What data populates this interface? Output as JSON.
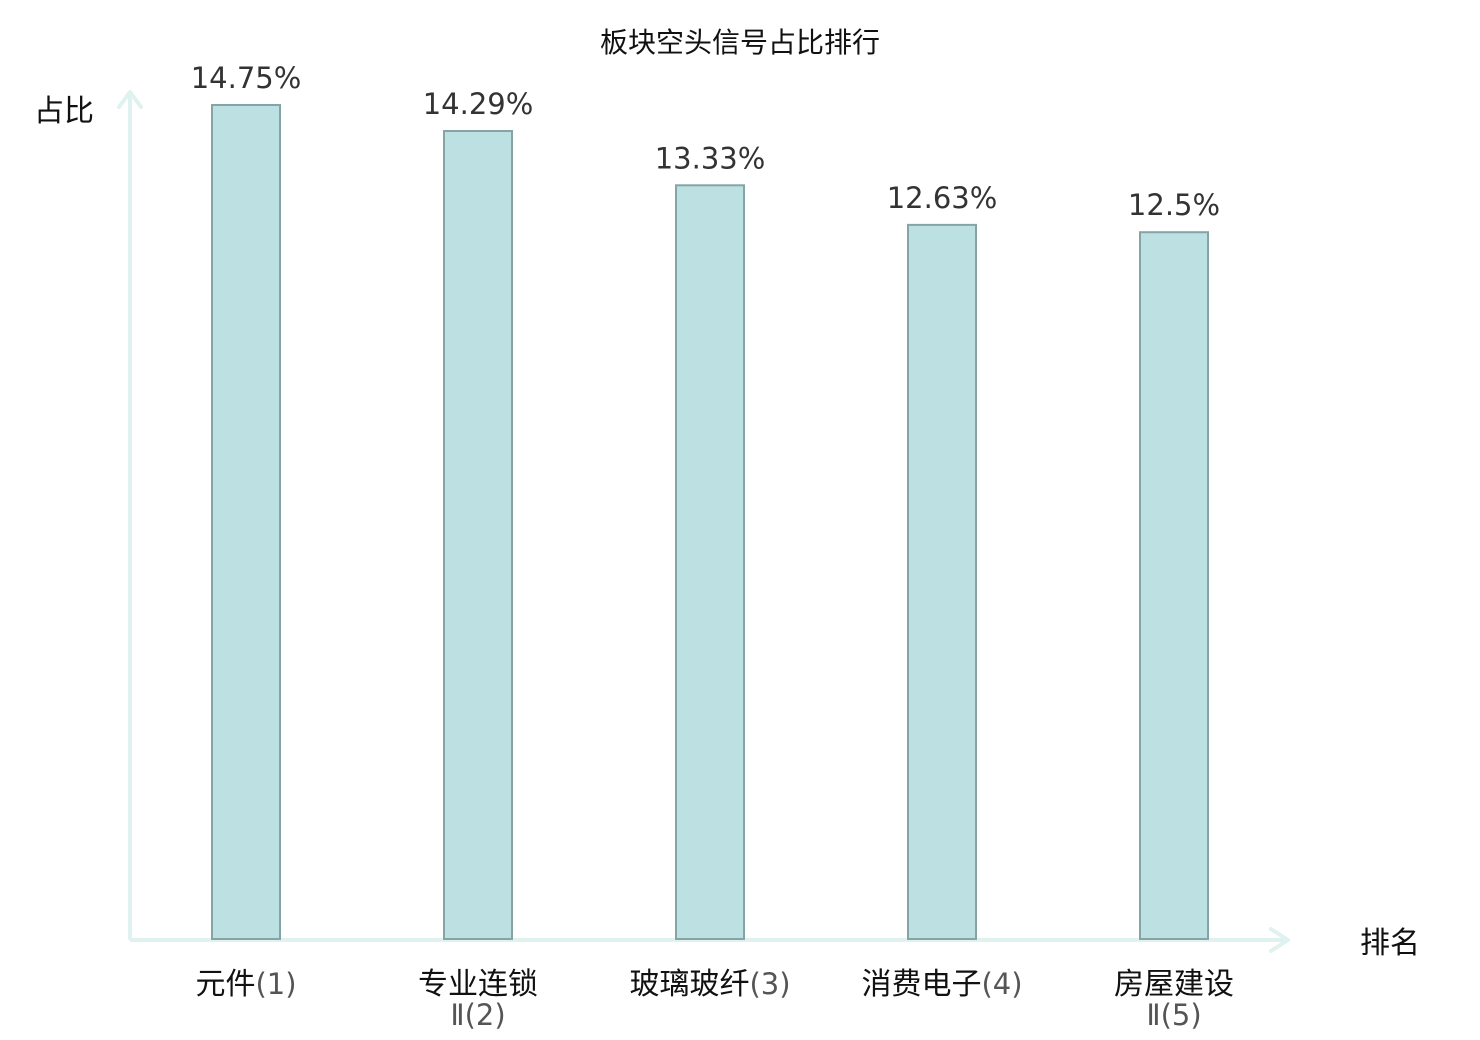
{
  "chart_data": {
    "type": "bar",
    "title": "板块空头信号占比排行",
    "xlabel": "排名",
    "ylabel": "占比",
    "categories": [
      "元件",
      "专业连锁Ⅱ",
      "玻璃玻纤",
      "消费电子",
      "房屋建设Ⅱ"
    ],
    "category_labels": [
      {
        "name": "元件",
        "rank": "(1)",
        "name_line2": "",
        "highlight": false
      },
      {
        "name": "专业连锁",
        "rank": "(2)",
        "name_line2": "Ⅱ",
        "highlight": true
      },
      {
        "name": "玻璃玻纤",
        "rank": "(3)",
        "name_line2": "",
        "highlight": false
      },
      {
        "name": "消费电子",
        "rank": "(4)",
        "name_line2": "",
        "highlight": false
      },
      {
        "name": "房屋建设",
        "rank": "(5)",
        "name_line2": "Ⅱ",
        "highlight": false
      }
    ],
    "values": [
      14.75,
      14.29,
      13.33,
      12.63,
      12.5
    ],
    "value_labels": [
      "14.75%",
      "14.29%",
      "13.33%",
      "12.63%",
      "12.5%"
    ],
    "ylim": [
      0,
      14.75
    ],
    "grid": false,
    "legend": "none"
  },
  "colors": {
    "bar_fill": "#bde0e2",
    "bar_stroke": "#86a3a5",
    "axis": "#dff2ef",
    "highlight_text": "#e8262a",
    "text": "#111111",
    "value_text": "#333333",
    "rank_text": "#555555"
  }
}
